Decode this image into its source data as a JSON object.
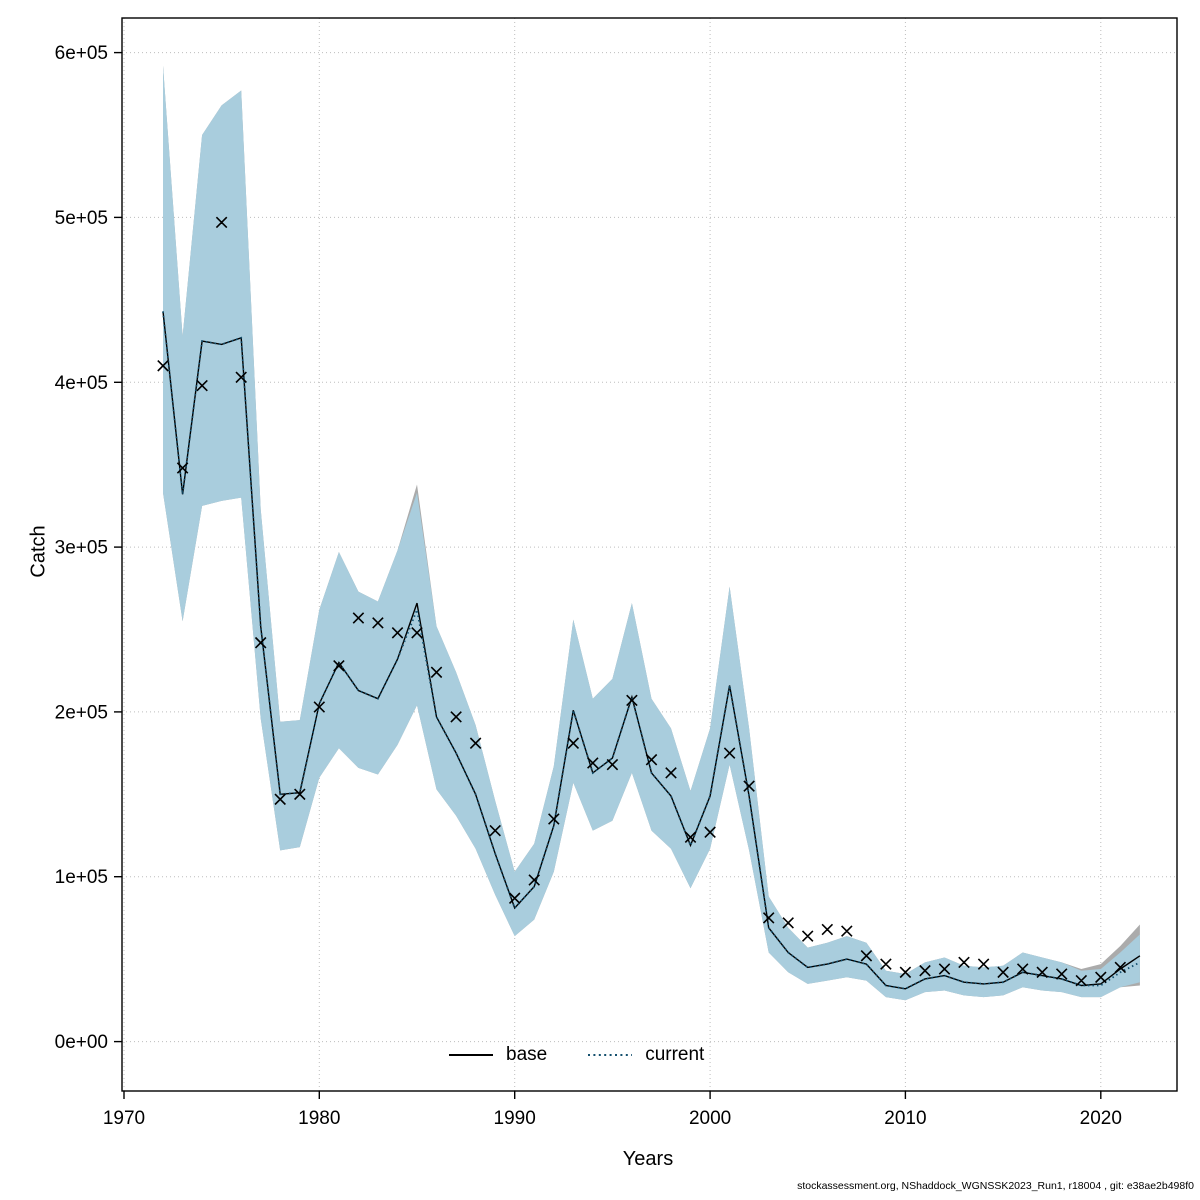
{
  "axes": {
    "xlabel": "Years",
    "ylabel": "Catch"
  },
  "legend": {
    "items": [
      {
        "label": "base",
        "line": "solid",
        "color": "#000000"
      },
      {
        "label": "current",
        "line": "dotted",
        "color": "#14506e"
      }
    ]
  },
  "footer": {
    "text": "stockassessment.org, NShaddock_WGNSSK2023_Run1, r18004 , git: e38ae2b498f0"
  },
  "chart_data": {
    "type": "line",
    "title": "",
    "xlabel": "Years",
    "ylabel": "Catch",
    "grid": true,
    "legend_position": "bottom-center-inside",
    "xlim": [
      1969.9,
      2023.9
    ],
    "ylim": [
      -30000,
      621000
    ],
    "x_ticks": [
      1970,
      1980,
      1990,
      2000,
      2010,
      2020
    ],
    "y_ticks": [
      0,
      100000,
      200000,
      300000,
      400000,
      500000,
      600000
    ],
    "y_tick_labels": [
      "0e+00",
      "1e+05",
      "2e+05",
      "3e+05",
      "4e+05",
      "5e+05",
      "6e+05"
    ],
    "years": [
      1972,
      1973,
      1974,
      1975,
      1976,
      1977,
      1978,
      1979,
      1980,
      1981,
      1982,
      1983,
      1984,
      1985,
      1986,
      1987,
      1988,
      1989,
      1990,
      1991,
      1992,
      1993,
      1994,
      1995,
      1996,
      1997,
      1998,
      1999,
      2000,
      2001,
      2002,
      2003,
      2004,
      2005,
      2006,
      2007,
      2008,
      2009,
      2010,
      2011,
      2012,
      2013,
      2014,
      2015,
      2016,
      2017,
      2018,
      2019,
      2020,
      2021,
      2022
    ],
    "observations": {
      "marker": "x",
      "color": "#000000",
      "values": [
        410000,
        348000,
        398000,
        497000,
        403000,
        242000,
        147000,
        150000,
        203000,
        228000,
        257000,
        254000,
        248000,
        248000,
        224000,
        197000,
        181000,
        128000,
        87000,
        98000,
        135000,
        181000,
        169000,
        168000,
        207000,
        171000,
        163000,
        124000,
        127000,
        175000,
        155000,
        75000,
        72000,
        64000,
        68000,
        67000,
        52000,
        47000,
        42000,
        43000,
        44000,
        48000,
        47000,
        42000,
        44000,
        42000,
        41000,
        37000,
        39000,
        45000,
        null
      ]
    },
    "series": [
      {
        "name": "base",
        "line": "solid",
        "color": "#000000",
        "values": [
          443000,
          332000,
          425000,
          423000,
          427000,
          252000,
          150000,
          151000,
          205000,
          230000,
          213000,
          208000,
          232000,
          266000,
          197000,
          175000,
          150000,
          114000,
          81000,
          94000,
          131000,
          201000,
          163000,
          172000,
          209000,
          163000,
          149000,
          119000,
          149000,
          216000,
          149000,
          69000,
          54000,
          45000,
          47000,
          50000,
          47000,
          34000,
          32000,
          38000,
          40000,
          36000,
          35000,
          36000,
          42000,
          40000,
          38000,
          34000,
          35000,
          44000,
          52000
        ],
        "band": {
          "color": "#ababab",
          "opacity": 1,
          "lower": [
            333000,
            255000,
            325000,
            328000,
            330000,
            196000,
            116000,
            118000,
            160000,
            178000,
            166000,
            162000,
            180000,
            204000,
            153000,
            137000,
            117000,
            89000,
            64000,
            74000,
            103000,
            157000,
            128000,
            134000,
            163000,
            128000,
            117000,
            93000,
            117000,
            168000,
            116000,
            54000,
            42000,
            35000,
            37000,
            39000,
            37000,
            27000,
            25000,
            30000,
            31000,
            28000,
            27000,
            28000,
            33000,
            31000,
            30000,
            27000,
            27000,
            33000,
            34000
          ],
          "upper": [
            592000,
            428000,
            550000,
            568000,
            577000,
            323000,
            194000,
            195000,
            262000,
            297000,
            273000,
            267000,
            298000,
            338000,
            252000,
            224000,
            192000,
            146000,
            103000,
            120000,
            167000,
            256000,
            208000,
            220000,
            266000,
            208000,
            190000,
            152000,
            190000,
            276000,
            190000,
            88000,
            69000,
            57000,
            60000,
            64000,
            60000,
            43000,
            41000,
            48000,
            51000,
            46000,
            45000,
            46000,
            54000,
            51000,
            48000,
            44000,
            47000,
            58000,
            71000
          ]
        }
      },
      {
        "name": "current",
        "line": "dotted",
        "color": "#14506e",
        "values": [
          443000,
          332000,
          425000,
          423000,
          427000,
          252000,
          150000,
          151000,
          205000,
          230000,
          213000,
          208000,
          232000,
          262000,
          197000,
          175000,
          150000,
          114000,
          81000,
          94000,
          131000,
          201000,
          163000,
          172000,
          209000,
          163000,
          149000,
          119000,
          149000,
          216000,
          149000,
          69000,
          54000,
          45000,
          47000,
          50000,
          47000,
          34000,
          32000,
          38000,
          40000,
          36000,
          35000,
          36000,
          42000,
          40000,
          38000,
          34000,
          34000,
          42000,
          48000
        ],
        "band": {
          "color": "#a9cddd",
          "opacity": 1,
          "lower": [
            333000,
            255000,
            325000,
            328000,
            330000,
            196000,
            116000,
            118000,
            160000,
            178000,
            166000,
            162000,
            180000,
            204000,
            153000,
            137000,
            117000,
            89000,
            64000,
            74000,
            103000,
            157000,
            128000,
            134000,
            163000,
            128000,
            117000,
            93000,
            117000,
            168000,
            116000,
            54000,
            42000,
            35000,
            37000,
            39000,
            37000,
            27000,
            25000,
            30000,
            31000,
            28000,
            27000,
            28000,
            33000,
            31000,
            30000,
            27000,
            27000,
            33000,
            36000
          ],
          "upper": [
            592000,
            428000,
            550000,
            568000,
            577000,
            323000,
            194000,
            195000,
            262000,
            297000,
            273000,
            267000,
            298000,
            333000,
            252000,
            224000,
            192000,
            146000,
            103000,
            120000,
            167000,
            256000,
            208000,
            220000,
            266000,
            208000,
            190000,
            152000,
            190000,
            276000,
            190000,
            88000,
            69000,
            57000,
            60000,
            64000,
            60000,
            43000,
            41000,
            48000,
            51000,
            46000,
            45000,
            46000,
            54000,
            51000,
            48000,
            43000,
            44000,
            54000,
            65000
          ]
        }
      }
    ]
  }
}
